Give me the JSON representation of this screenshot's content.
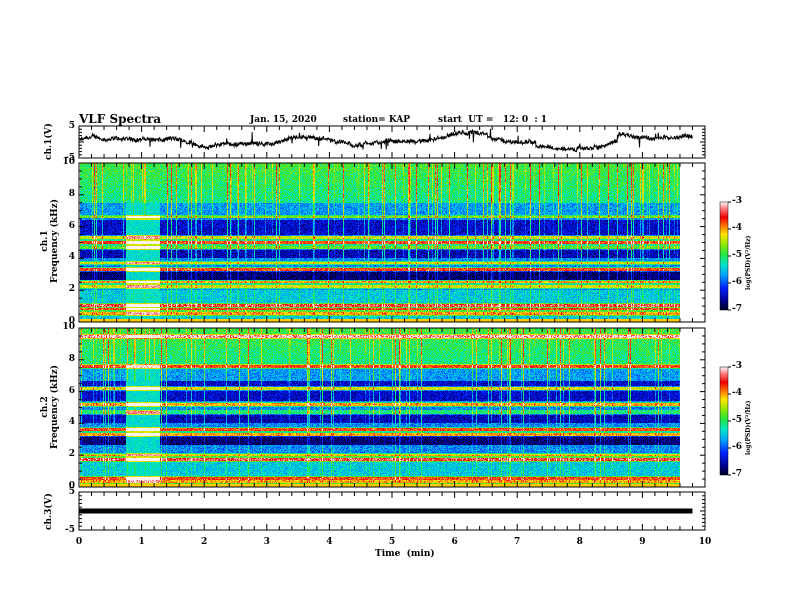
{
  "header": {
    "title": "VLF Spectra",
    "date": "Jan. 15, 2020",
    "station": "station= KAP",
    "start_ut": "start  UT =   12: 0  : 1"
  },
  "chart_data": [
    {
      "id": "ch1-voltage",
      "type": "line",
      "ylabel": "ch.1(V)",
      "ylim": [
        -5,
        5
      ],
      "yticks": [
        "5",
        "-5"
      ],
      "xlim": [
        0,
        10
      ],
      "x_end": 9.8,
      "description": "noisy waveform around 0 V with fluctuations of about +/-2 V"
    },
    {
      "id": "ch1-spectrogram",
      "type": "heatmap",
      "ylabel": "ch.1\nFrequency (kHz)",
      "ylabel_line1": "ch.1",
      "ylabel_line2": "Frequency (kHz)",
      "ylim": [
        0,
        10
      ],
      "yticks": [
        "0",
        "2",
        "4",
        "6",
        "8",
        "10"
      ],
      "xlim": [
        0,
        10
      ],
      "x_end": 9.8,
      "colorbar": {
        "label": "log(PSD)(V²/Hz)",
        "range": [
          -7,
          -3
        ],
        "ticks": [
          "-3",
          "-4",
          "-5",
          "-6",
          "-7"
        ]
      },
      "bands_khz": [
        0.5,
        0.8,
        1.0,
        2.2,
        2.5,
        3.3,
        3.7,
        4.7,
        5.0,
        5.3,
        6.6
      ],
      "burst_interval_min": [
        0.75,
        1.3
      ]
    },
    {
      "id": "ch2-spectrogram",
      "type": "heatmap",
      "ylabel_line1": "ch.2",
      "ylabel_line2": "Frequency (kHz)",
      "ylim": [
        0,
        10
      ],
      "yticks": [
        "0",
        "2",
        "4",
        "6",
        "8",
        "10"
      ],
      "xlim": [
        0,
        10
      ],
      "x_end": 9.8,
      "colorbar": {
        "label": "log(PSD)(V²/Hz)",
        "range": [
          -7,
          -3
        ],
        "ticks": [
          "-3",
          "-4",
          "-5",
          "-6",
          "-7"
        ]
      },
      "bands_khz": [
        0.3,
        0.5,
        1.7,
        2.0,
        3.3,
        3.6,
        4.7,
        5.2,
        6.2,
        7.6,
        9.5
      ],
      "burst_interval_min": [
        0.75,
        1.3
      ]
    },
    {
      "id": "ch3-voltage",
      "type": "line",
      "ylabel": "ch.3(V)",
      "ylim": [
        -5,
        5
      ],
      "yticks": [
        "5",
        "-5"
      ],
      "xlim": [
        0,
        10
      ],
      "x_end": 9.8,
      "constant_value": 0,
      "xlabel": "Time  (min)",
      "xticks": [
        "0",
        "1",
        "2",
        "3",
        "4",
        "5",
        "6",
        "7",
        "8",
        "9",
        "10"
      ]
    }
  ],
  "colors": {
    "line": "#000000",
    "axis": "#000000",
    "background": "#ffffff"
  }
}
